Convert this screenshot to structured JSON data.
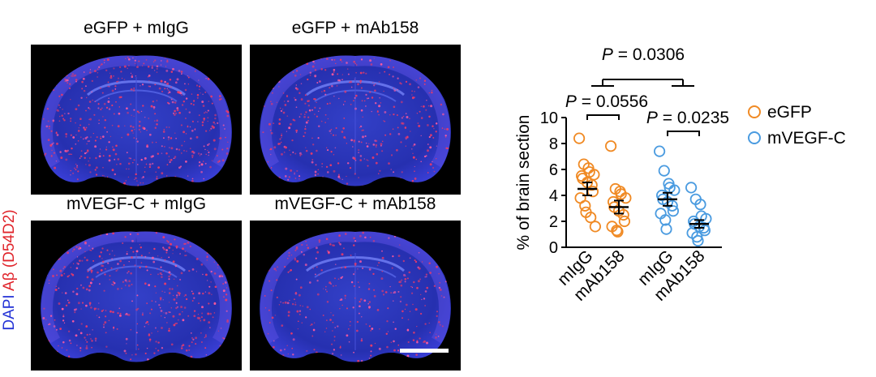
{
  "panels": {
    "top_left_title": "eGFP + mIgG",
    "top_right_title": "eGFP + mAb158",
    "bottom_left_title": "mVEGF-C + mIgG",
    "bottom_right_title": "mVEGF-C + mAb158",
    "stain_label_dapi": "DAPI",
    "stain_label_abeta": "Aβ (D54D2)",
    "colors": {
      "dapi": "#2433d6",
      "abeta": "#e0242b"
    }
  },
  "chart_data": {
    "type": "scatter",
    "ylabel": "% of brain section",
    "ylim": [
      0,
      10
    ],
    "yticks": [
      0,
      2,
      4,
      6,
      8,
      10
    ],
    "categories": [
      "mIgG",
      "mAb158",
      "mIgG",
      "mAb158"
    ],
    "legend_position": "right",
    "series": [
      {
        "name": "eGFP",
        "color": "#f08a24",
        "groups": [
          {
            "category_index": 0,
            "mean": 4.5,
            "sem": 0.5,
            "points": [
              8.4,
              6.4,
              6.1,
              5.8,
              5.6,
              5.5,
              5.3,
              5.0,
              4.8,
              4.3,
              3.8,
              3.2,
              2.7,
              2.3,
              1.6
            ]
          },
          {
            "category_index": 1,
            "mean": 3.1,
            "sem": 0.5,
            "points": [
              7.8,
              4.5,
              4.3,
              4.1,
              3.8,
              3.5,
              3.1,
              2.8,
              2.5,
              2.0,
              1.6,
              1.3,
              1.2
            ]
          }
        ]
      },
      {
        "name": "mVEGF-C",
        "color": "#4a9be0",
        "groups": [
          {
            "category_index": 2,
            "mean": 3.7,
            "sem": 0.5,
            "points": [
              7.4,
              5.9,
              4.9,
              4.6,
              4.4,
              4.0,
              3.7,
              3.5,
              3.2,
              2.8,
              2.6,
              2.1,
              1.4
            ]
          },
          {
            "category_index": 3,
            "mean": 1.8,
            "sem": 0.3,
            "points": [
              4.6,
              3.7,
              3.3,
              2.4,
              2.2,
              2.0,
              1.8,
              1.6,
              1.5,
              1.3,
              1.1,
              0.8,
              0.5
            ]
          }
        ]
      }
    ],
    "annotations": [
      {
        "text": "P = 0.0306",
        "between": [
          [
            0,
            1
          ],
          [
            2,
            3
          ]
        ]
      },
      {
        "text": "P = 0.0556",
        "between": [
          0,
          1
        ]
      },
      {
        "text": "P = 0.0235",
        "between": [
          2,
          3
        ]
      }
    ]
  }
}
